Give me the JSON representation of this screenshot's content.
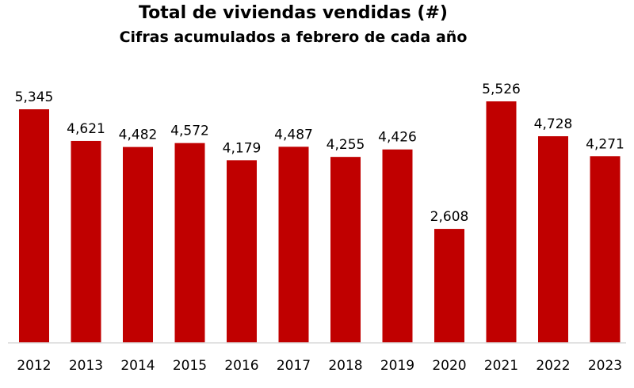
{
  "chart_data": {
    "type": "bar",
    "title": "Total de viviendas vendidas (#)",
    "subtitle": "Cifras acumulados a febrero de cada año",
    "categories": [
      "2012",
      "2013",
      "2014",
      "2015",
      "2016",
      "2017",
      "2018",
      "2019",
      "2020",
      "2021",
      "2022",
      "2023"
    ],
    "values": [
      5345,
      4621,
      4482,
      4572,
      4179,
      4487,
      4255,
      4426,
      2608,
      5526,
      4728,
      4271
    ],
    "value_labels": [
      "5,345",
      "4,621",
      "4,482",
      "4,572",
      "4,179",
      "4,487",
      "4,255",
      "4,426",
      "2,608",
      "5,526",
      "4,728",
      "4,271"
    ],
    "xlabel": "",
    "ylabel": "",
    "grid": false,
    "legend": "none",
    "bar_color": "#C00000"
  }
}
